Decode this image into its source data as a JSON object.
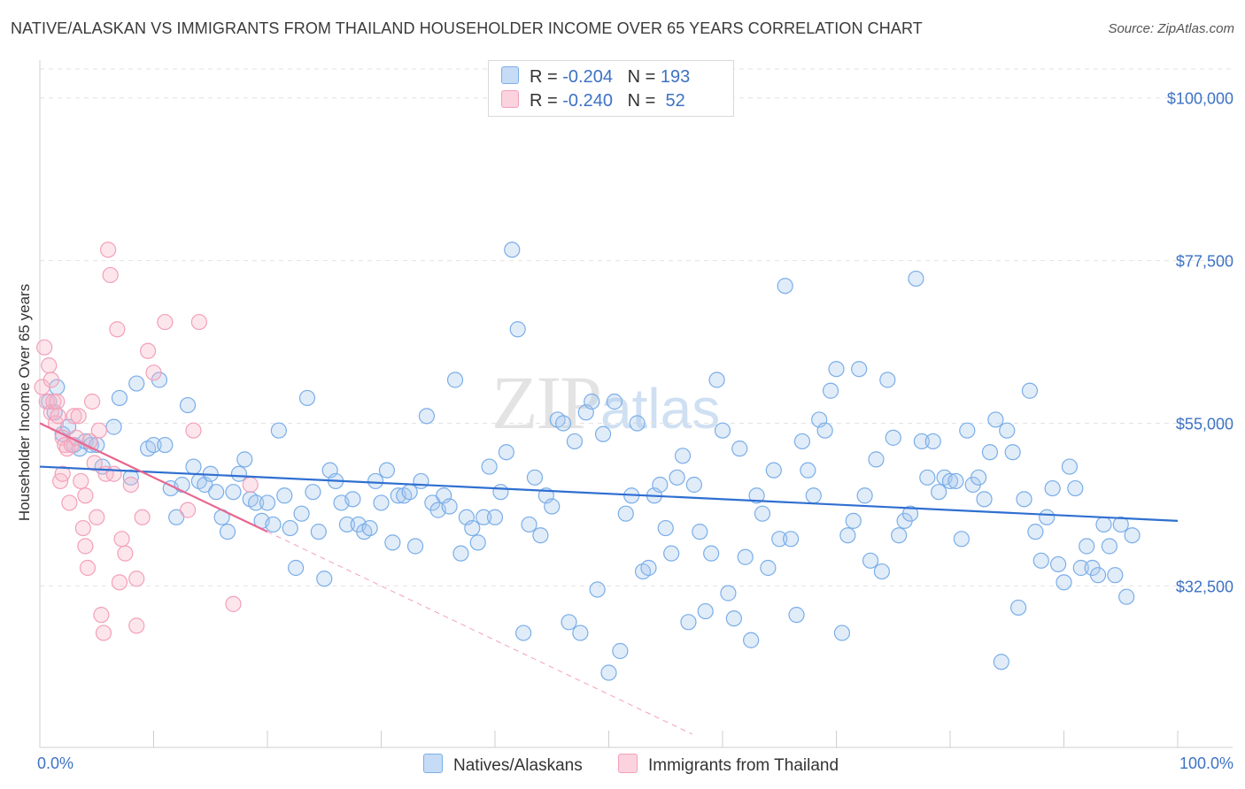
{
  "header": {
    "title": "NATIVE/ALASKAN VS IMMIGRANTS FROM THAILAND HOUSEHOLDER INCOME OVER 65 YEARS CORRELATION CHART",
    "source": "Source: ZipAtlas.com"
  },
  "watermark": {
    "zip": "ZIP",
    "atlas": "atlas"
  },
  "legend": {
    "rows": [
      {
        "r_label": "R = ",
        "r_value": "-0.204",
        "n_label": "N = ",
        "n_value": "193",
        "color": "#a9c8ee"
      },
      {
        "r_label": "R = ",
        "r_value": "-0.240",
        "n_label": "N = ",
        "n_value": " 52",
        "color": "#f7b6c8"
      }
    ]
  },
  "bottom_legend": {
    "items": [
      {
        "label": "Natives/Alaskans",
        "color": "#a9c8ee"
      },
      {
        "label": "Immigrants from Thailand",
        "color": "#f7b6c8"
      }
    ]
  },
  "chart_data": {
    "type": "scatter",
    "ylabel": "Householder Income Over 65 years",
    "xlim": [
      0,
      100
    ],
    "ylim": [
      12000,
      104000
    ],
    "x_tick_labels": [
      "0.0%",
      "100.0%"
    ],
    "y_ticks": [
      {
        "value": 32500,
        "label": "$32,500"
      },
      {
        "value": 55000,
        "label": "$55,000"
      },
      {
        "value": 77500,
        "label": "$77,500"
      },
      {
        "value": 100000,
        "label": "$100,000"
      }
    ],
    "grid": true,
    "legend_placement": "top-center",
    "series": [
      {
        "name": "Natives/Alaskans",
        "color": "#7aaee8",
        "trend": {
          "x": [
            0,
            100
          ],
          "y": [
            49000,
            41500
          ]
        },
        "points": [
          [
            0.8,
            58
          ],
          [
            1.3,
            56.5
          ],
          [
            1.5,
            60
          ],
          [
            2,
            53.5
          ],
          [
            2.5,
            54.5
          ],
          [
            3,
            52
          ],
          [
            3.5,
            51.5
          ],
          [
            4,
            52.5
          ],
          [
            4.5,
            52
          ],
          [
            5,
            52
          ],
          [
            5.5,
            49
          ],
          [
            6.5,
            54.5
          ],
          [
            7,
            58.5
          ],
          [
            8,
            47.5
          ],
          [
            8.5,
            60.5
          ],
          [
            9.5,
            51.5
          ],
          [
            10,
            52
          ],
          [
            10.5,
            61
          ],
          [
            11,
            52
          ],
          [
            11.5,
            46
          ],
          [
            12,
            42
          ],
          [
            12.5,
            46.5
          ],
          [
            13,
            57.5
          ],
          [
            13.5,
            49
          ],
          [
            14,
            47
          ],
          [
            14.5,
            46.5
          ],
          [
            15,
            48
          ],
          [
            15.5,
            45.5
          ],
          [
            16,
            42
          ],
          [
            16.5,
            40
          ],
          [
            17,
            45.5
          ],
          [
            17.5,
            48
          ],
          [
            18,
            50
          ],
          [
            18.5,
            44.5
          ],
          [
            19,
            44
          ],
          [
            19.5,
            41.5
          ],
          [
            20,
            44
          ],
          [
            20.5,
            41
          ],
          [
            21,
            54
          ],
          [
            21.5,
            45
          ],
          [
            22,
            40.5
          ],
          [
            22.5,
            35
          ],
          [
            23,
            42.5
          ],
          [
            23.5,
            58.5
          ],
          [
            24,
            45.5
          ],
          [
            24.5,
            40
          ],
          [
            25,
            33.5
          ],
          [
            25.5,
            48.5
          ],
          [
            26,
            47
          ],
          [
            26.5,
            44
          ],
          [
            27,
            41
          ],
          [
            27.5,
            44.5
          ],
          [
            28,
            41
          ],
          [
            28.5,
            40
          ],
          [
            29,
            40.5
          ],
          [
            29.5,
            47
          ],
          [
            30,
            44
          ],
          [
            30.5,
            48.5
          ],
          [
            31,
            38.5
          ],
          [
            31.5,
            45
          ],
          [
            32,
            45
          ],
          [
            32.5,
            45.5
          ],
          [
            33,
            38
          ],
          [
            33.5,
            47
          ],
          [
            34,
            56
          ],
          [
            34.5,
            44
          ],
          [
            35,
            43
          ],
          [
            35.5,
            45
          ],
          [
            36,
            43.5
          ],
          [
            36.5,
            61
          ],
          [
            37,
            37
          ],
          [
            37.5,
            42
          ],
          [
            38,
            40.5
          ],
          [
            38.5,
            38.5
          ],
          [
            39,
            42
          ],
          [
            39.5,
            49
          ],
          [
            40,
            42
          ],
          [
            40.5,
            45.5
          ],
          [
            41,
            51
          ],
          [
            41.5,
            79
          ],
          [
            42,
            68
          ],
          [
            42.5,
            26
          ],
          [
            43,
            41
          ],
          [
            43.5,
            47.5
          ],
          [
            44,
            39.5
          ],
          [
            44.5,
            45
          ],
          [
            45,
            43.5
          ],
          [
            45.5,
            55.5
          ],
          [
            46,
            55
          ],
          [
            46.5,
            27.5
          ],
          [
            47,
            52.5
          ],
          [
            47.5,
            26
          ],
          [
            48,
            56.5
          ],
          [
            48.5,
            58
          ],
          [
            49,
            32
          ],
          [
            49.5,
            53.5
          ],
          [
            50,
            20.5
          ],
          [
            50.5,
            58
          ],
          [
            51,
            23.5
          ],
          [
            51.5,
            42.5
          ],
          [
            52,
            45
          ],
          [
            52.5,
            55
          ],
          [
            53,
            34.5
          ],
          [
            53.5,
            35
          ],
          [
            54,
            45
          ],
          [
            54.5,
            46.5
          ],
          [
            55,
            40.5
          ],
          [
            55.5,
            37
          ],
          [
            56,
            47.5
          ],
          [
            56.5,
            50.5
          ],
          [
            57,
            27.5
          ],
          [
            57.5,
            46.5
          ],
          [
            58,
            40
          ],
          [
            58.5,
            29
          ],
          [
            59,
            37
          ],
          [
            59.5,
            61
          ],
          [
            60,
            54
          ],
          [
            60.5,
            31.5
          ],
          [
            61,
            28
          ],
          [
            61.5,
            51.5
          ],
          [
            62,
            36.5
          ],
          [
            62.5,
            25
          ],
          [
            63,
            45
          ],
          [
            63.5,
            42.5
          ],
          [
            64,
            35
          ],
          [
            64.5,
            48.5
          ],
          [
            65,
            39
          ],
          [
            65.5,
            74
          ],
          [
            66,
            39
          ],
          [
            66.5,
            28.5
          ],
          [
            67,
            52.5
          ],
          [
            67.5,
            48.5
          ],
          [
            68,
            45
          ],
          [
            68.5,
            55.5
          ],
          [
            69,
            54
          ],
          [
            69.5,
            59.5
          ],
          [
            70,
            62.5
          ],
          [
            70.5,
            26
          ],
          [
            71,
            39.5
          ],
          [
            71.5,
            41.5
          ],
          [
            72,
            62.5
          ],
          [
            72.5,
            45
          ],
          [
            73,
            36
          ],
          [
            73.5,
            50
          ],
          [
            74,
            34.5
          ],
          [
            74.5,
            61
          ],
          [
            75,
            53
          ],
          [
            75.5,
            39.5
          ],
          [
            76,
            41.5
          ],
          [
            76.5,
            42.5
          ],
          [
            77,
            75
          ],
          [
            77.5,
            52.5
          ],
          [
            78,
            47.5
          ],
          [
            78.5,
            52.5
          ],
          [
            79,
            45.5
          ],
          [
            79.5,
            47.5
          ],
          [
            80,
            47
          ],
          [
            80.5,
            47
          ],
          [
            81,
            39
          ],
          [
            81.5,
            54
          ],
          [
            82,
            46.5
          ],
          [
            82.5,
            47.5
          ],
          [
            83,
            44.5
          ],
          [
            83.5,
            51
          ],
          [
            84,
            55.5
          ],
          [
            84.5,
            22
          ],
          [
            85,
            54
          ],
          [
            85.5,
            51
          ],
          [
            86,
            29.5
          ],
          [
            86.5,
            44.5
          ],
          [
            87,
            59.5
          ],
          [
            87.5,
            40
          ],
          [
            88,
            36
          ],
          [
            88.5,
            42
          ],
          [
            89,
            46
          ],
          [
            89.5,
            35.5
          ],
          [
            90,
            33
          ],
          [
            90.5,
            49
          ],
          [
            91,
            46
          ],
          [
            91.5,
            35
          ],
          [
            92,
            38
          ],
          [
            92.5,
            35
          ],
          [
            93,
            34
          ],
          [
            93.5,
            41
          ],
          [
            94,
            38
          ],
          [
            94.5,
            34
          ],
          [
            95,
            41
          ],
          [
            95.5,
            31
          ],
          [
            96,
            39.5
          ]
        ]
      },
      {
        "name": "Immigrants from Thailand",
        "color": "#f3a0b9",
        "trend": {
          "x": [
            0,
            20
          ],
          "y": [
            55000,
            40000
          ]
        },
        "points": [
          [
            0.2,
            60
          ],
          [
            0.4,
            65.5
          ],
          [
            0.6,
            58
          ],
          [
            0.8,
            63
          ],
          [
            1,
            61
          ],
          [
            1,
            56.5
          ],
          [
            1.2,
            58
          ],
          [
            1.4,
            55
          ],
          [
            1.5,
            58
          ],
          [
            1.6,
            56
          ],
          [
            1.8,
            47
          ],
          [
            2,
            48
          ],
          [
            2,
            53
          ],
          [
            2.2,
            52
          ],
          [
            2.4,
            51.5
          ],
          [
            2.6,
            44
          ],
          [
            2.8,
            52
          ],
          [
            3,
            56
          ],
          [
            3.2,
            53
          ],
          [
            3.4,
            56
          ],
          [
            3.6,
            47
          ],
          [
            3.8,
            40.5
          ],
          [
            4,
            45
          ],
          [
            4,
            38
          ],
          [
            4.2,
            35
          ],
          [
            4.4,
            52.5
          ],
          [
            4.6,
            58
          ],
          [
            4.8,
            49.5
          ],
          [
            5,
            42
          ],
          [
            5.2,
            54
          ],
          [
            5.4,
            28.5
          ],
          [
            5.6,
            26
          ],
          [
            5.8,
            48
          ],
          [
            6,
            79
          ],
          [
            6.2,
            75.5
          ],
          [
            6.5,
            48
          ],
          [
            6.8,
            68
          ],
          [
            7,
            33
          ],
          [
            7.2,
            39
          ],
          [
            7.5,
            37
          ],
          [
            8,
            46.5
          ],
          [
            8.5,
            27
          ],
          [
            8.5,
            33.5
          ],
          [
            9,
            42
          ],
          [
            9.5,
            65
          ],
          [
            10,
            62
          ],
          [
            11,
            69
          ],
          [
            13,
            43
          ],
          [
            13.5,
            54
          ],
          [
            14,
            69
          ],
          [
            17,
            30
          ],
          [
            18.5,
            46.5
          ]
        ]
      }
    ]
  }
}
